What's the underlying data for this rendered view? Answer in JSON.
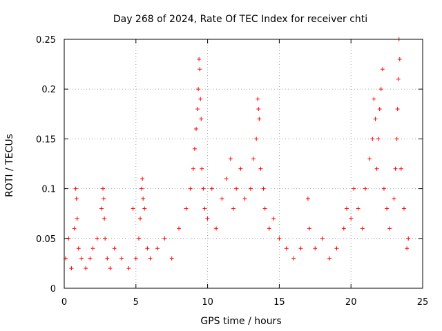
{
  "chart_data": {
    "type": "scatter",
    "title": "Day 268 of 2024, Rate Of TEC Index for receiver chti",
    "xlabel": "GPS time / hours",
    "ylabel": "ROTI / TECUs",
    "xlim": [
      0,
      25
    ],
    "ylim": [
      0,
      0.25
    ],
    "xticks": [
      "0",
      "5",
      "10",
      "15",
      "20",
      "25"
    ],
    "yticks": [
      "0",
      "0.05",
      "0.1",
      "0.15",
      "0.2",
      "0.25"
    ],
    "grid": true,
    "legend": "none",
    "marker": "plus",
    "color": "#ff0000",
    "series": [
      {
        "x": [
          0.1,
          0.3,
          0.5,
          0.7,
          0.8,
          0.85,
          0.9,
          1.0,
          1.2,
          1.5,
          1.8,
          2.0,
          2.3,
          2.6,
          2.7,
          2.75,
          2.8,
          2.85,
          3.0,
          3.2,
          3.5,
          4.0,
          4.5,
          4.8,
          5.0,
          5.2,
          5.3,
          5.4,
          5.45,
          5.5,
          5.6,
          5.8,
          6.0,
          6.5,
          7.0,
          7.5,
          8.0,
          8.5,
          8.8,
          9.0,
          9.1,
          9.2,
          9.3,
          9.35,
          9.4,
          9.45,
          9.5,
          9.55,
          9.6,
          9.7,
          9.8,
          10.0,
          10.3,
          10.6,
          11.0,
          11.3,
          11.6,
          11.8,
          12.0,
          12.3,
          12.6,
          13.0,
          13.2,
          13.4,
          13.5,
          13.55,
          13.6,
          13.7,
          13.9,
          14.0,
          14.3,
          14.6,
          15.0,
          15.5,
          16.0,
          16.5,
          17.0,
          17.1,
          17.5,
          18.0,
          18.5,
          19.0,
          19.5,
          19.7,
          20.0,
          20.2,
          20.5,
          20.8,
          21.0,
          21.3,
          21.5,
          21.6,
          21.7,
          21.8,
          21.9,
          22.0,
          22.1,
          22.2,
          22.3,
          22.5,
          22.7,
          23.0,
          23.1,
          23.2,
          23.25,
          23.3,
          23.35,
          23.4,
          23.5,
          23.7,
          23.9,
          24.0
        ],
        "y": [
          0.03,
          0.05,
          0.02,
          0.06,
          0.1,
          0.09,
          0.07,
          0.04,
          0.03,
          0.02,
          0.03,
          0.04,
          0.05,
          0.08,
          0.1,
          0.09,
          0.07,
          0.05,
          0.03,
          0.02,
          0.04,
          0.03,
          0.02,
          0.08,
          0.03,
          0.05,
          0.07,
          0.1,
          0.11,
          0.09,
          0.08,
          0.04,
          0.03,
          0.04,
          0.05,
          0.03,
          0.06,
          0.08,
          0.1,
          0.12,
          0.14,
          0.16,
          0.18,
          0.2,
          0.23,
          0.22,
          0.19,
          0.17,
          0.12,
          0.1,
          0.08,
          0.07,
          0.1,
          0.06,
          0.09,
          0.11,
          0.13,
          0.08,
          0.1,
          0.12,
          0.09,
          0.1,
          0.13,
          0.15,
          0.19,
          0.18,
          0.17,
          0.12,
          0.1,
          0.08,
          0.06,
          0.07,
          0.05,
          0.04,
          0.03,
          0.04,
          0.09,
          0.06,
          0.04,
          0.05,
          0.03,
          0.04,
          0.06,
          0.08,
          0.07,
          0.1,
          0.08,
          0.06,
          0.1,
          0.13,
          0.15,
          0.19,
          0.17,
          0.12,
          0.15,
          0.18,
          0.2,
          0.22,
          0.1,
          0.08,
          0.06,
          0.09,
          0.12,
          0.15,
          0.18,
          0.21,
          0.25,
          0.23,
          0.12,
          0.08,
          0.04,
          0.05
        ]
      }
    ]
  }
}
